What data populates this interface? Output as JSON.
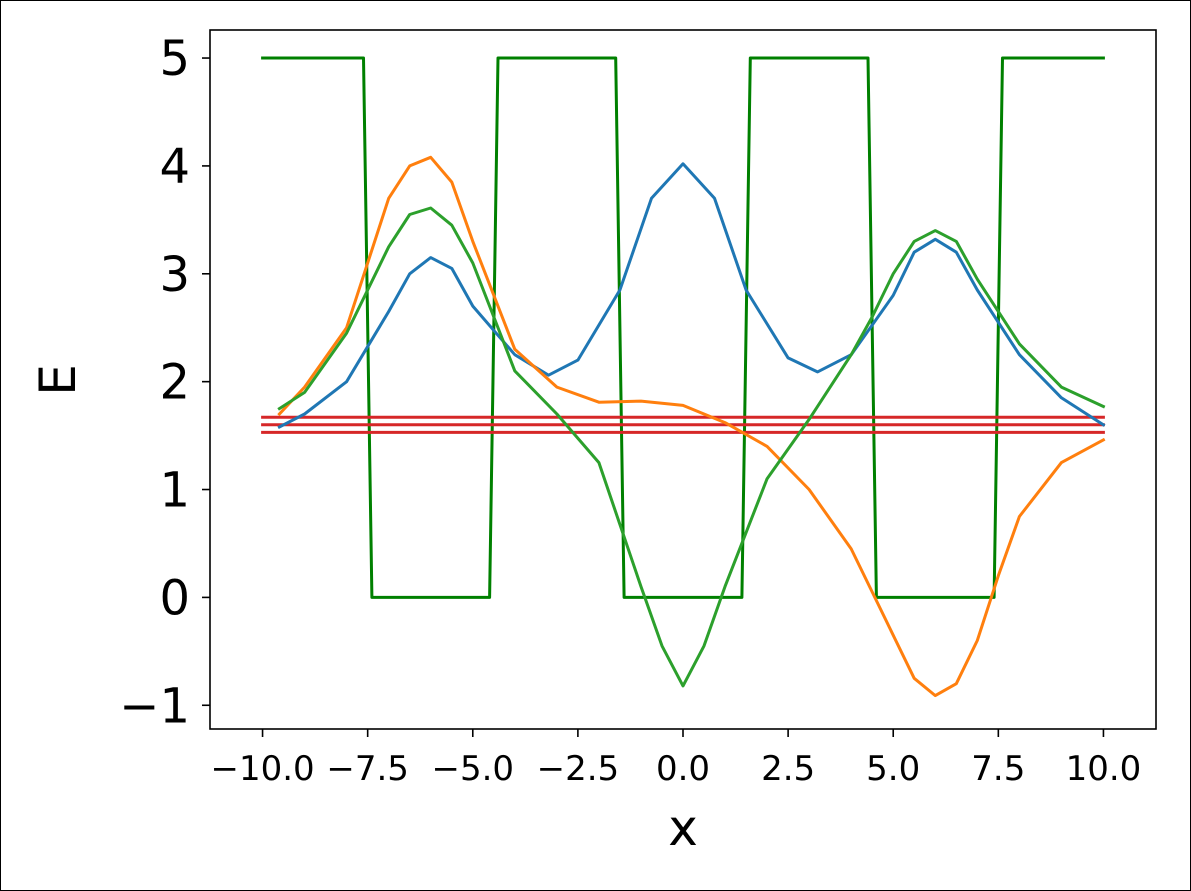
{
  "chart_data": {
    "type": "line",
    "xlabel": "x",
    "ylabel": "E",
    "xlim": [
      -11.25,
      11.25
    ],
    "ylim": [
      -1.22,
      5.26
    ],
    "xticks": [
      -10.0,
      -7.5,
      -5.0,
      -2.5,
      0.0,
      2.5,
      5.0,
      7.5,
      10.0
    ],
    "xtick_labels": [
      "−10.0",
      "−7.5",
      "−5.0",
      "−2.5",
      "0.0",
      "2.5",
      "5.0",
      "7.5",
      "10.0"
    ],
    "yticks": [
      -1,
      0,
      1,
      2,
      3,
      4,
      5
    ],
    "ytick_labels": [
      "−1",
      "0",
      "1",
      "2",
      "3",
      "4",
      "5"
    ],
    "grid": false,
    "series": [
      {
        "color": "#008000",
        "kind": "potential",
        "x": [
          -10.0,
          -7.6,
          -7.4,
          -4.6,
          -4.4,
          -1.6,
          -1.4,
          1.4,
          1.6,
          4.4,
          4.6,
          7.4,
          7.6,
          10.0
        ],
        "y": [
          5,
          5,
          0,
          0,
          5,
          5,
          0,
          0,
          5,
          5,
          0,
          0,
          5,
          5
        ]
      },
      {
        "color": "#d62728",
        "kind": "energy-level",
        "x": [
          -10.0,
          10.0
        ],
        "y": [
          1.53,
          1.53
        ]
      },
      {
        "color": "#d62728",
        "kind": "energy-level",
        "x": [
          -10.0,
          10.0
        ],
        "y": [
          1.6,
          1.6
        ]
      },
      {
        "color": "#d62728",
        "kind": "energy-level",
        "x": [
          -10.0,
          10.0
        ],
        "y": [
          1.67,
          1.67
        ]
      },
      {
        "color": "#1f77b4",
        "x": [
          -9.6,
          -9.0,
          -8.0,
          -7.0,
          -6.5,
          -6.0,
          -5.5,
          -5.0,
          -4.0,
          -3.2,
          -2.5,
          -1.5,
          -0.75,
          0.0,
          0.75,
          1.5,
          2.5,
          3.2,
          4.0,
          5.0,
          5.5,
          6.0,
          6.5,
          7.0,
          8.0,
          9.0,
          10.0
        ],
        "y": [
          1.58,
          1.7,
          2.0,
          2.65,
          3.0,
          3.15,
          3.05,
          2.7,
          2.25,
          2.06,
          2.2,
          2.85,
          3.7,
          4.02,
          3.7,
          2.85,
          2.22,
          2.09,
          2.25,
          2.8,
          3.2,
          3.32,
          3.2,
          2.85,
          2.25,
          1.85,
          1.6
        ]
      },
      {
        "color": "#ff7f0e",
        "x": [
          -9.6,
          -9.0,
          -8.0,
          -7.0,
          -6.5,
          -6.0,
          -5.5,
          -5.0,
          -4.0,
          -3.0,
          -2.0,
          -1.0,
          0.0,
          1.0,
          2.0,
          3.0,
          4.0,
          4.5,
          5.0,
          5.5,
          6.0,
          6.5,
          7.0,
          7.5,
          8.0,
          9.0,
          10.0
        ],
        "y": [
          1.7,
          1.95,
          2.5,
          3.7,
          4.0,
          4.08,
          3.85,
          3.3,
          2.3,
          1.95,
          1.81,
          1.82,
          1.78,
          1.62,
          1.4,
          1.0,
          0.45,
          0.05,
          -0.35,
          -0.75,
          -0.91,
          -0.8,
          -0.4,
          0.2,
          0.75,
          1.25,
          1.46
        ]
      },
      {
        "color": "#2ca02c",
        "x": [
          -9.6,
          -9.0,
          -8.0,
          -7.0,
          -6.5,
          -6.0,
          -5.5,
          -5.0,
          -4.0,
          -3.0,
          -2.0,
          -1.0,
          -0.5,
          0.0,
          0.5,
          1.0,
          2.0,
          3.0,
          4.0,
          4.5,
          5.0,
          5.5,
          6.0,
          6.5,
          7.0,
          8.0,
          9.0,
          10.0
        ],
        "y": [
          1.75,
          1.9,
          2.45,
          3.25,
          3.55,
          3.61,
          3.45,
          3.1,
          2.1,
          1.7,
          1.25,
          0.1,
          -0.45,
          -0.82,
          -0.45,
          0.1,
          1.1,
          1.65,
          2.25,
          2.6,
          3.0,
          3.3,
          3.4,
          3.3,
          2.95,
          2.35,
          1.95,
          1.77
        ]
      }
    ]
  }
}
